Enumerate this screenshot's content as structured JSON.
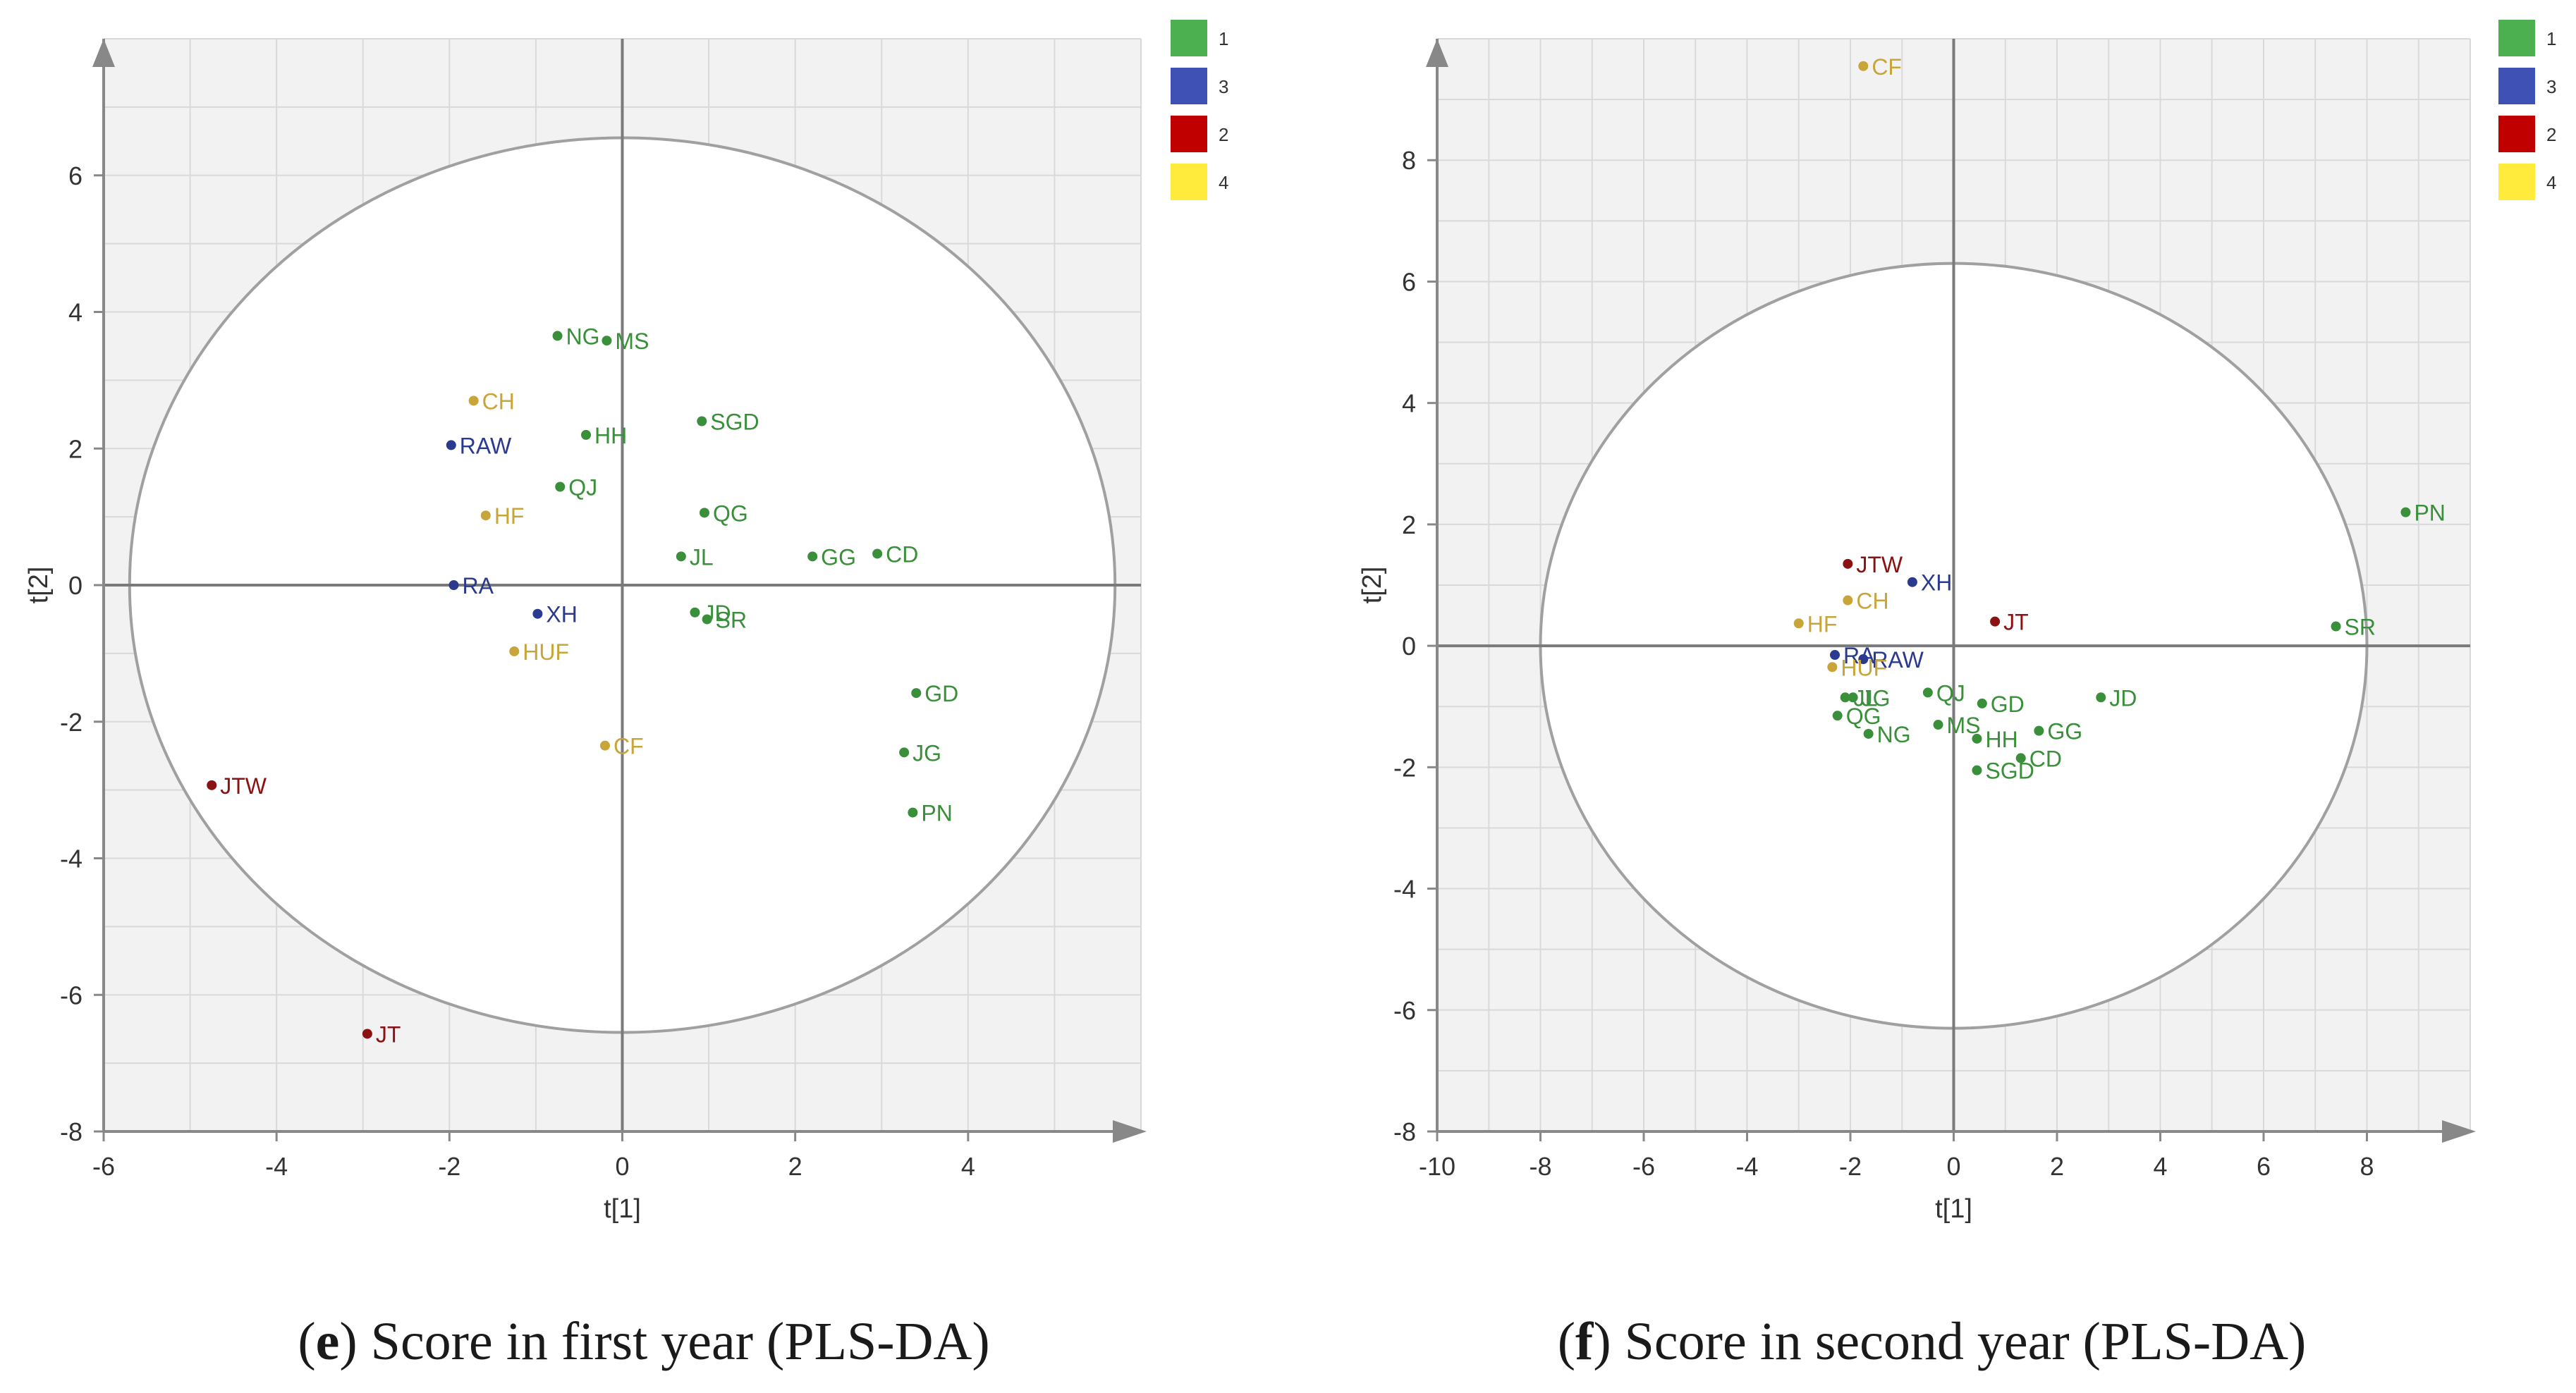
{
  "colors": {
    "group_1": "#3a8f3a",
    "group_3": "#2a3a8f",
    "group_2": "#8b1212",
    "group_4": "#c8a53a",
    "legend_1": "#4caf50",
    "legend_3": "#3f51b5",
    "legend_2": "#c00000",
    "legend_4": "#ffeb3b",
    "plot_bg": "#f2f2f2",
    "grid": "#d9d9d9",
    "axis": "#888888"
  },
  "legend": [
    {
      "label": "1",
      "group": "1"
    },
    {
      "label": "3",
      "group": "3"
    },
    {
      "label": "2",
      "group": "2"
    },
    {
      "label": "4",
      "group": "4"
    }
  ],
  "captions": {
    "e": {
      "letter": "e",
      "paren_open": "(",
      "paren_close": ")",
      "text": " Score in first year (PLS-DA)"
    },
    "f": {
      "letter": "f",
      "paren_open": "(",
      "paren_close": ")",
      "text": " Score in second year (PLS-DA)"
    }
  },
  "chart_data": [
    {
      "type": "scatter",
      "title": "Score in first year (PLS-DA)",
      "xlabel": "t[1]",
      "ylabel": "t[2]",
      "xlim": [
        -6,
        6
      ],
      "ylim": [
        -8,
        8
      ],
      "xticks": [
        -6,
        -4,
        -2,
        0,
        2,
        4
      ],
      "yticks": [
        -8,
        -6,
        -4,
        -2,
        0,
        2,
        4,
        6
      ],
      "grid": true,
      "legend_position": "right",
      "ellipse": {
        "rx": 5.7,
        "ry": 6.55
      },
      "points": [
        {
          "label": "NG",
          "x": -0.75,
          "y": 3.65,
          "group": "1"
        },
        {
          "label": "MS",
          "x": -0.18,
          "y": 3.58,
          "group": "1"
        },
        {
          "label": "CH",
          "x": -1.72,
          "y": 2.7,
          "group": "4"
        },
        {
          "label": "SGD",
          "x": 0.92,
          "y": 2.4,
          "group": "1"
        },
        {
          "label": "HH",
          "x": -0.42,
          "y": 2.2,
          "group": "1"
        },
        {
          "label": "RAW",
          "x": -1.98,
          "y": 2.05,
          "group": "3"
        },
        {
          "label": "QJ",
          "x": -0.72,
          "y": 1.44,
          "group": "1"
        },
        {
          "label": "QG",
          "x": 0.95,
          "y": 1.06,
          "group": "1"
        },
        {
          "label": "HF",
          "x": -1.58,
          "y": 1.02,
          "group": "4"
        },
        {
          "label": "JL",
          "x": 0.68,
          "y": 0.42,
          "group": "1"
        },
        {
          "label": "GG",
          "x": 2.2,
          "y": 0.42,
          "group": "1"
        },
        {
          "label": "CD",
          "x": 2.95,
          "y": 0.46,
          "group": "1"
        },
        {
          "label": "RA",
          "x": -1.95,
          "y": 0.0,
          "group": "3"
        },
        {
          "label": "XH",
          "x": -0.98,
          "y": -0.42,
          "group": "3"
        },
        {
          "label": "JD",
          "x": 0.84,
          "y": -0.4,
          "group": "1"
        },
        {
          "label": "SR",
          "x": 0.98,
          "y": -0.5,
          "group": "1"
        },
        {
          "label": "HUF",
          "x": -1.25,
          "y": -0.97,
          "group": "4"
        },
        {
          "label": "GD",
          "x": 3.4,
          "y": -1.58,
          "group": "1"
        },
        {
          "label": "CF",
          "x": -0.2,
          "y": -2.35,
          "group": "4"
        },
        {
          "label": "JG",
          "x": 3.26,
          "y": -2.45,
          "group": "1"
        },
        {
          "label": "JTW",
          "x": -4.75,
          "y": -2.93,
          "group": "2"
        },
        {
          "label": "PN",
          "x": 3.36,
          "y": -3.33,
          "group": "1"
        },
        {
          "label": "JT",
          "x": -2.95,
          "y": -6.57,
          "group": "2"
        }
      ]
    },
    {
      "type": "scatter",
      "title": "Score in second year (PLS-DA)",
      "xlabel": "t[1]",
      "ylabel": "t[2]",
      "xlim": [
        -10,
        10
      ],
      "ylim": [
        -8,
        10
      ],
      "xticks": [
        -10,
        -8,
        -6,
        -4,
        -2,
        0,
        2,
        4,
        6,
        8
      ],
      "yticks": [
        -8,
        -6,
        -4,
        -2,
        0,
        2,
        4,
        6,
        8
      ],
      "grid": true,
      "legend_position": "right",
      "ellipse": {
        "rx": 8.0,
        "ry": 6.3
      },
      "points": [
        {
          "label": "CF",
          "x": -1.75,
          "y": 9.55,
          "group": "4"
        },
        {
          "label": "PN",
          "x": 8.75,
          "y": 2.2,
          "group": "1"
        },
        {
          "label": "JTW",
          "x": -2.05,
          "y": 1.35,
          "group": "2"
        },
        {
          "label": "XH",
          "x": -0.8,
          "y": 1.05,
          "group": "3"
        },
        {
          "label": "CH",
          "x": -2.05,
          "y": 0.75,
          "group": "4"
        },
        {
          "label": "JT",
          "x": 0.8,
          "y": 0.4,
          "group": "2"
        },
        {
          "label": "SR",
          "x": 7.4,
          "y": 0.32,
          "group": "1"
        },
        {
          "label": "HF",
          "x": -3.0,
          "y": 0.37,
          "group": "4"
        },
        {
          "label": "RA",
          "x": -2.3,
          "y": -0.15,
          "group": "3"
        },
        {
          "label": "RAW",
          "x": -1.75,
          "y": -0.22,
          "group": "3"
        },
        {
          "label": "HUF",
          "x": -2.35,
          "y": -0.35,
          "group": "4"
        },
        {
          "label": "QJ",
          "x": -0.5,
          "y": -0.77,
          "group": "1"
        },
        {
          "label": "JL",
          "x": -2.1,
          "y": -0.85,
          "group": "1"
        },
        {
          "label": "JG",
          "x": -1.95,
          "y": -0.85,
          "group": "1"
        },
        {
          "label": "JD",
          "x": 2.85,
          "y": -0.85,
          "group": "1"
        },
        {
          "label": "GD",
          "x": 0.55,
          "y": -0.95,
          "group": "1"
        },
        {
          "label": "QG",
          "x": -2.25,
          "y": -1.15,
          "group": "1"
        },
        {
          "label": "MS",
          "x": -0.3,
          "y": -1.3,
          "group": "1"
        },
        {
          "label": "GG",
          "x": 1.65,
          "y": -1.4,
          "group": "1"
        },
        {
          "label": "NG",
          "x": -1.65,
          "y": -1.45,
          "group": "1"
        },
        {
          "label": "HH",
          "x": 0.45,
          "y": -1.53,
          "group": "1"
        },
        {
          "label": "CD",
          "x": 1.3,
          "y": -1.85,
          "group": "1"
        },
        {
          "label": "SGD",
          "x": 0.45,
          "y": -2.05,
          "group": "1"
        }
      ]
    }
  ]
}
